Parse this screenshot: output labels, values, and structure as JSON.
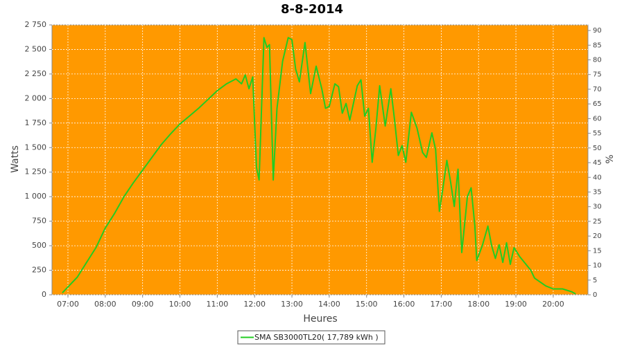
{
  "chart_data": {
    "type": "line",
    "title": "8-8-2014",
    "x_label": "Heures",
    "y_label": "Watts",
    "y2_label": "%",
    "x": [
      6.85,
      7.0,
      7.25,
      7.5,
      7.75,
      8.0,
      8.25,
      8.5,
      8.75,
      9.0,
      9.25,
      9.5,
      9.75,
      10.0,
      10.25,
      10.5,
      10.75,
      11.0,
      11.25,
      11.5,
      11.65,
      11.75,
      11.85,
      11.95,
      12.05,
      12.12,
      12.25,
      12.33,
      12.4,
      12.5,
      12.6,
      12.75,
      12.9,
      13.0,
      13.1,
      13.2,
      13.35,
      13.5,
      13.65,
      13.8,
      13.9,
      14.0,
      14.15,
      14.25,
      14.35,
      14.45,
      14.55,
      14.75,
      14.85,
      14.95,
      15.05,
      15.15,
      15.25,
      15.35,
      15.5,
      15.65,
      15.75,
      15.85,
      15.95,
      16.05,
      16.2,
      16.35,
      16.5,
      16.6,
      16.75,
      16.85,
      16.95,
      17.05,
      17.15,
      17.25,
      17.35,
      17.45,
      17.55,
      17.7,
      17.8,
      17.9,
      17.95,
      18.1,
      18.25,
      18.35,
      18.45,
      18.55,
      18.65,
      18.75,
      18.85,
      18.95,
      19.1,
      19.25,
      19.4,
      19.5,
      19.65,
      19.8,
      20.0,
      20.25,
      20.5,
      20.6
    ],
    "series": [
      {
        "name": "SMA SB3000TL20( 17,789 kWh )",
        "color": "#22cc22",
        "values": [
          20,
          80,
          180,
          330,
          480,
          680,
          830,
          1000,
          1140,
          1270,
          1400,
          1530,
          1640,
          1740,
          1820,
          1900,
          1990,
          2080,
          2150,
          2200,
          2150,
          2240,
          2100,
          2220,
          1300,
          1170,
          2620,
          2520,
          2550,
          1170,
          1900,
          2380,
          2620,
          2600,
          2300,
          2170,
          2570,
          2050,
          2330,
          2100,
          1900,
          1920,
          2150,
          2120,
          1850,
          1950,
          1780,
          2130,
          2190,
          1820,
          1900,
          1350,
          1700,
          2130,
          1720,
          2100,
          1780,
          1420,
          1520,
          1350,
          1860,
          1700,
          1450,
          1400,
          1650,
          1480,
          850,
          1100,
          1370,
          1150,
          900,
          1280,
          430,
          1000,
          1090,
          700,
          350,
          500,
          700,
          500,
          370,
          510,
          330,
          530,
          310,
          480,
          390,
          320,
          250,
          170,
          130,
          90,
          60,
          60,
          30,
          10
        ]
      }
    ],
    "xlim": [
      6.573,
      20.93
    ],
    "xticks": [
      {
        "value": 7,
        "label": "07:00"
      },
      {
        "value": 8,
        "label": "08:00"
      },
      {
        "value": 9,
        "label": "09:00"
      },
      {
        "value": 10,
        "label": "10:00"
      },
      {
        "value": 11,
        "label": "11:00"
      },
      {
        "value": 12,
        "label": "12:00"
      },
      {
        "value": 13,
        "label": "13:00"
      },
      {
        "value": 14,
        "label": "14:00"
      },
      {
        "value": 15,
        "label": "15:00"
      },
      {
        "value": 16,
        "label": "16:00"
      },
      {
        "value": 17,
        "label": "17:00"
      },
      {
        "value": 18,
        "label": "18:00"
      },
      {
        "value": 19,
        "label": "19:00"
      },
      {
        "value": 20,
        "label": "20:00"
      }
    ],
    "ylim": [
      0,
      2750
    ],
    "yticks": [
      0,
      250,
      500,
      750,
      {
        "value": 1000,
        "label": "1 000"
      },
      {
        "value": 1250,
        "label": "1 250"
      },
      {
        "value": 1500,
        "label": "1 500"
      },
      {
        "value": 1750,
        "label": "1 750"
      },
      {
        "value": 2000,
        "label": "2 000"
      },
      {
        "value": 2250,
        "label": "2 250"
      },
      {
        "value": 2500,
        "label": "2 500"
      },
      {
        "value": 2750,
        "label": "2 750"
      }
    ],
    "y2lim": [
      0,
      91.9
    ],
    "y2ticks": [
      0,
      5,
      10,
      15,
      20,
      25,
      30,
      35,
      40,
      45,
      50,
      55,
      60,
      65,
      70,
      75,
      80,
      85,
      90
    ],
    "grid": true,
    "background": "#ff9900",
    "legend": "bottom"
  }
}
